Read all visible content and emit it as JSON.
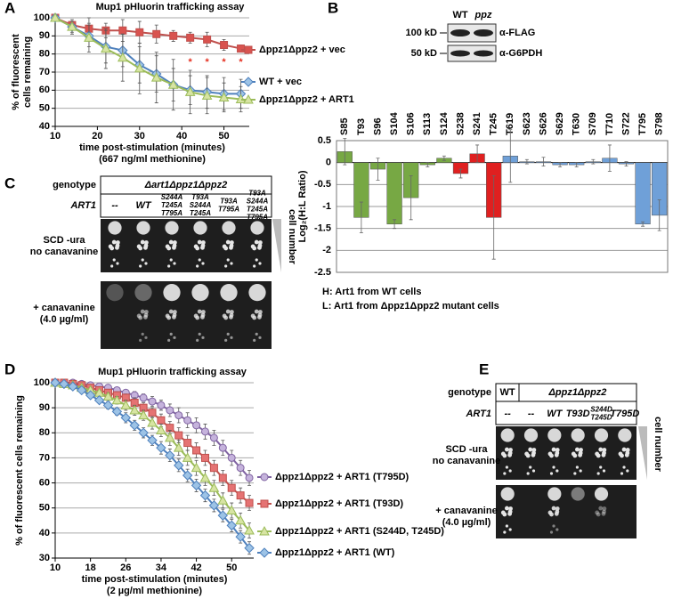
{
  "panel_labels": [
    "A",
    "B",
    "C",
    "D",
    "E"
  ],
  "chart_data": [
    {
      "type": "line",
      "title": "Mup1 pHluorin trafficking assay",
      "ylabel": [
        "% of fluorescent",
        "cells remaining"
      ],
      "xlabel": [
        "time post-stimulation (minutes)",
        "(667 ng/ml methionine)"
      ],
      "x": [
        10,
        14,
        18,
        22,
        26,
        30,
        34,
        38,
        42,
        46,
        50,
        54
      ],
      "xlim": [
        10,
        56
      ],
      "xticks": [
        10,
        20,
        30,
        40,
        50
      ],
      "ylim": [
        40,
        100
      ],
      "yticks": [
        40,
        50,
        60,
        70,
        80,
        90,
        100
      ],
      "grid": true,
      "series": [
        {
          "name": "Δppz1Δppz2 + vec",
          "color": "#c0504d",
          "marker_fill": "#d9534f",
          "marker": "square",
          "values": [
            100,
            96,
            94,
            93,
            93,
            92,
            91,
            90,
            89,
            88,
            85,
            83
          ],
          "errors": [
            0,
            2,
            6,
            4,
            6,
            6,
            5,
            3,
            3,
            4,
            3,
            2
          ]
        },
        {
          "name": "WT + vec",
          "color": "#4f81bd",
          "marker_fill": "#9dc3e6",
          "marker": "diamond",
          "values": [
            100,
            95,
            90,
            84,
            82,
            74,
            69,
            63,
            60,
            59,
            58,
            58
          ],
          "errors": [
            0,
            3,
            6,
            9,
            9,
            10,
            10,
            9,
            8,
            9,
            9,
            8
          ]
        },
        {
          "name": "Δppz1Δppz2 + ART1",
          "color": "#9bbb59",
          "marker_fill": "#d7e4a3",
          "marker": "triangle",
          "values": [
            100,
            95,
            89,
            83,
            78,
            72,
            67,
            63,
            59,
            57,
            56,
            55
          ],
          "errors": [
            0,
            4,
            8,
            11,
            13,
            14,
            14,
            14,
            12,
            10,
            8,
            7
          ]
        }
      ],
      "annotations": [
        {
          "text": "*",
          "x": 42
        },
        {
          "text": "*",
          "x": 46
        },
        {
          "text": "*",
          "x": 50
        },
        {
          "text": "*",
          "x": 54
        }
      ]
    },
    {
      "type": "bar",
      "ylabel": "Log₂(H:L Ratio)",
      "categories": [
        "S85",
        "T93",
        "S96",
        "S104",
        "S106",
        "S113",
        "S124",
        "S238",
        "S241",
        "T245",
        "T619",
        "S623",
        "S626",
        "S629",
        "T630",
        "S709",
        "T710",
        "S722",
        "T795",
        "S798"
      ],
      "values": [
        0.25,
        -1.25,
        -0.15,
        -1.4,
        -0.8,
        -0.05,
        0.1,
        -0.25,
        0.2,
        -1.25,
        0.15,
        0.02,
        0.02,
        -0.05,
        -0.05,
        0.02,
        0.1,
        -0.03,
        -1.4,
        -1.2
      ],
      "errors": [
        0.3,
        0.35,
        0.25,
        0.1,
        0.5,
        0.05,
        0.05,
        0.1,
        0.2,
        0.95,
        0.6,
        0.05,
        0.1,
        0.05,
        0.05,
        0.05,
        0.3,
        0.05,
        0.05,
        0.35
      ],
      "colors": [
        "#77a844",
        "#77a844",
        "#77a844",
        "#77a844",
        "#77a844",
        "#77a844",
        "#77a844",
        "#e02020",
        "#e02020",
        "#e02020",
        "#6fa0d8",
        "#6fa0d8",
        "#6fa0d8",
        "#6fa0d8",
        "#6fa0d8",
        "#6fa0d8",
        "#6fa0d8",
        "#6fa0d8",
        "#6fa0d8",
        "#6fa0d8"
      ],
      "ylim": [
        -2.5,
        0.5
      ],
      "yticks": [
        0.5,
        0,
        -0.5,
        -1,
        -1.5,
        -2,
        -2.5
      ],
      "grid": true,
      "notes": [
        "H: Art1 from WT cells",
        "L: Art1 from Δppz1Δppz2 mutant cells"
      ]
    },
    {
      "type": "line",
      "title": "Mup1 pHluorin trafficking assay",
      "ylabel": [
        "% of fluorescent cells remaining"
      ],
      "xlabel": [
        "time post-stimulation (minutes)",
        "(2 µg/ml methionine)"
      ],
      "x": [
        10,
        12,
        14,
        16,
        18,
        20,
        22,
        24,
        26,
        28,
        30,
        32,
        34,
        36,
        38,
        40,
        42,
        44,
        46,
        48,
        50,
        52,
        54
      ],
      "xlim": [
        10,
        55
      ],
      "xticks": [
        10,
        18,
        26,
        34,
        42,
        50
      ],
      "ylim": [
        30,
        100
      ],
      "yticks": [
        30,
        40,
        50,
        60,
        70,
        80,
        90,
        100
      ],
      "grid": true,
      "series": [
        {
          "name": "Δppz1Δppz2 + ART1 (T795D)",
          "color": "#8064a2",
          "marker_fill": "#c5b3dc",
          "marker": "circle",
          "values": [
            100,
            100,
            100,
            99.5,
            99,
            98.5,
            98,
            97,
            96,
            95,
            94,
            92.5,
            91,
            89,
            87,
            85,
            83,
            80.5,
            78,
            74,
            70,
            66,
            62
          ],
          "errors": [
            0,
            0,
            0,
            0.5,
            0.5,
            0.5,
            1,
            1,
            1,
            1.5,
            1.5,
            2,
            2,
            2.5,
            3,
            3,
            3,
            3,
            3,
            3,
            3,
            3,
            3
          ]
        },
        {
          "name": "Δppz1Δppz2 + ART1 (T93D)",
          "color": "#c0504d",
          "marker_fill": "#e57373",
          "marker": "square",
          "values": [
            100,
            100,
            99.5,
            99,
            98,
            97,
            96,
            95,
            94,
            92,
            90,
            88,
            85,
            82,
            79,
            76,
            73,
            70,
            66,
            62,
            58,
            55,
            52
          ],
          "errors": [
            0,
            0,
            0.5,
            0.5,
            1,
            1,
            1,
            1.5,
            1.5,
            2,
            2,
            2,
            2.5,
            2.5,
            3,
            3,
            3,
            3,
            3,
            3,
            3,
            3,
            3
          ]
        },
        {
          "name": "Δppz1Δppz2 + ART1 (S244D, T245D)",
          "color": "#9bbb59",
          "marker_fill": "#d7e4a3",
          "marker": "triangle",
          "values": [
            100,
            99.5,
            99,
            98,
            97,
            96,
            94.5,
            93,
            91,
            89,
            87,
            84,
            81,
            78,
            74,
            70,
            66,
            62,
            58,
            53,
            49,
            45,
            41
          ],
          "errors": [
            0,
            0.5,
            0.5,
            1,
            1,
            1,
            1.5,
            1.5,
            2,
            2,
            2,
            2.5,
            2.5,
            3,
            3,
            3,
            3,
            3,
            3,
            3,
            3,
            3,
            3
          ]
        },
        {
          "name": "Δppz1Δppz2 + ART1 (WT)",
          "color": "#4f81bd",
          "marker_fill": "#9dc3e6",
          "marker": "diamond",
          "values": [
            100,
            99.5,
            98.5,
            97,
            95,
            93,
            91,
            88.5,
            86,
            83,
            80,
            77,
            74,
            71,
            67,
            63,
            59,
            55,
            51,
            47,
            43,
            38.5,
            34
          ],
          "errors": [
            0,
            0.5,
            0.5,
            1,
            1,
            1,
            1.5,
            1.5,
            2,
            2,
            2,
            2,
            2.5,
            2.5,
            2.5,
            2.5,
            2.5,
            2.5,
            2.5,
            2.5,
            2.5,
            2.5,
            2.5
          ]
        }
      ]
    }
  ],
  "blot": {
    "lanes": [
      "WT",
      "ppz"
    ],
    "markers": [
      "100 kD",
      "50 kD"
    ],
    "antibodies": [
      "α-FLAG",
      "α-G6PDH"
    ]
  },
  "panel_c": {
    "genotype_label": "genotype",
    "genotype": "Δart1Δppz1Δppz2",
    "gene_label": "ART1",
    "lanes": [
      [
        "--"
      ],
      [
        "WT"
      ],
      [
        "S244A",
        "T245A",
        "T795A"
      ],
      [
        "T93A",
        "S244A",
        "T245A"
      ],
      [
        "T93A",
        "T795A"
      ],
      [
        "T93A",
        "S244A",
        "T245A",
        "T795A"
      ]
    ],
    "conditions": [
      [
        "SCD -ura",
        "no canavanine"
      ],
      [
        "+ canavanine",
        "(4.0 µg/ml)"
      ]
    ],
    "gradient_label": "cell number"
  },
  "panel_e": {
    "genotype_label": "genotype",
    "genotypes": [
      "WT",
      "Δppz1Δppz2"
    ],
    "gene_label": "ART1",
    "lanes": [
      [
        "--"
      ],
      [
        "--"
      ],
      [
        "WT"
      ],
      [
        "T93D"
      ],
      [
        "S244D",
        "T245D"
      ],
      [
        "T795D"
      ]
    ],
    "conditions": [
      [
        "SCD -ura",
        "no canavanine"
      ],
      [
        "+ canavanine",
        "(4.0 µg/ml)"
      ]
    ],
    "gradient_label": "cell number"
  }
}
